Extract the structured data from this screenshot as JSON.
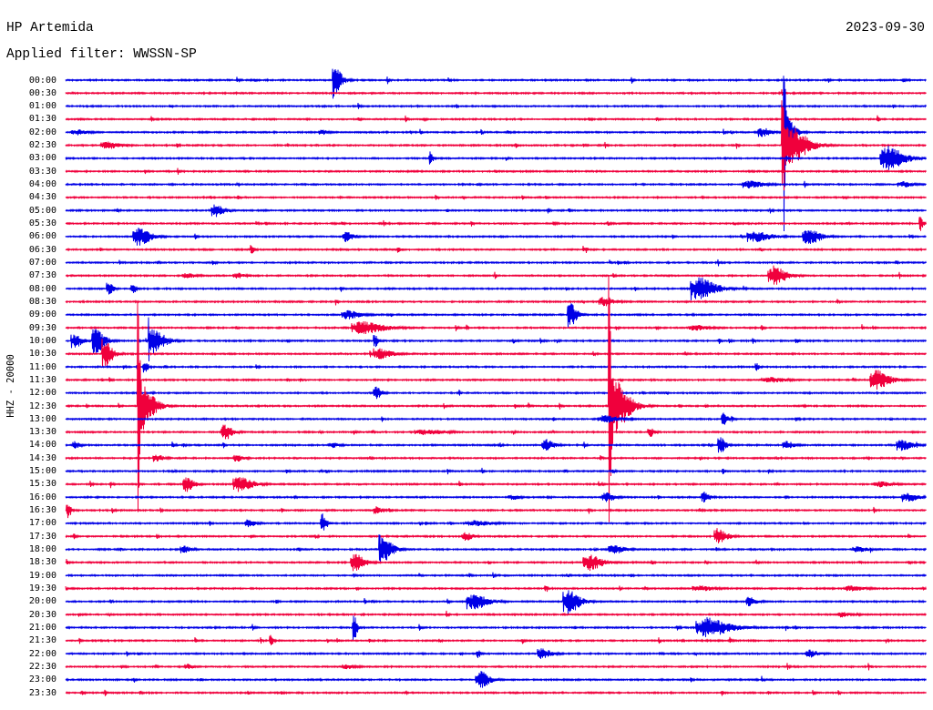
{
  "chart_data": {
    "type": "line",
    "title": "HP Artemida",
    "date": "2023-09-30",
    "subtitle": "Applied filter: WWSSN-SP",
    "ylabel": "HHZ - 20000",
    "y_tick_labels": [
      "00:00",
      "00:30",
      "01:00",
      "01:30",
      "02:00",
      "02:30",
      "03:00",
      "03:30",
      "04:00",
      "04:30",
      "05:00",
      "05:30",
      "06:00",
      "06:30",
      "07:00",
      "07:30",
      "08:00",
      "08:30",
      "09:00",
      "09:30",
      "10:00",
      "10:30",
      "11:00",
      "11:30",
      "12:00",
      "12:30",
      "13:00",
      "13:30",
      "14:00",
      "14:30",
      "15:00",
      "15:30",
      "16:00",
      "16:30",
      "17:00",
      "17:30",
      "18:00",
      "18:30",
      "19:00",
      "19:30",
      "20:00",
      "20:30",
      "21:00",
      "21:30",
      "22:00",
      "22:30",
      "23:00",
      "23:30"
    ],
    "xlim": [
      0,
      30
    ],
    "grid": false,
    "trace_colors": [
      "#0000e6",
      "#f0003c"
    ],
    "events": [
      {
        "row": "00:00",
        "minute": 9.31,
        "amplitude": 1.96,
        "duration": 0.57
      },
      {
        "row": "02:00",
        "minute": 0.19,
        "amplitude": 0.21,
        "duration": 0.95
      },
      {
        "row": "02:00",
        "minute": 8.83,
        "amplitude": 0.21,
        "duration": 0.48
      },
      {
        "row": "02:00",
        "minute": 24.15,
        "amplitude": 0.35,
        "duration": 0.79
      },
      {
        "row": "02:00",
        "minute": 25.04,
        "amplitude": 8.38,
        "duration": 0.64
      },
      {
        "row": "02:30",
        "minute": 1.21,
        "amplitude": 0.28,
        "duration": 1.27
      },
      {
        "row": "02:30",
        "minute": 24.95,
        "amplitude": 11.17,
        "duration": 1.43
      },
      {
        "row": "03:00",
        "minute": 12.65,
        "amplitude": 0.56,
        "duration": 0.1
      },
      {
        "row": "03:00",
        "minute": 28.38,
        "amplitude": 0.98,
        "duration": 1.43
      },
      {
        "row": "04:00",
        "minute": 23.61,
        "amplitude": 0.28,
        "duration": 1.27
      },
      {
        "row": "04:00",
        "minute": 29.01,
        "amplitude": 0.21,
        "duration": 0.95
      },
      {
        "row": "05:00",
        "minute": 5.08,
        "amplitude": 0.49,
        "duration": 0.79
      },
      {
        "row": "05:30",
        "minute": 29.75,
        "amplitude": 0.56,
        "duration": 0.25
      },
      {
        "row": "06:00",
        "minute": 2.32,
        "amplitude": 0.7,
        "duration": 1.11
      },
      {
        "row": "06:00",
        "minute": 9.63,
        "amplitude": 0.42,
        "duration": 0.64
      },
      {
        "row": "06:00",
        "minute": 23.77,
        "amplitude": 0.42,
        "duration": 1.43
      },
      {
        "row": "06:00",
        "minute": 25.68,
        "amplitude": 0.63,
        "duration": 1.11
      },
      {
        "row": "06:30",
        "minute": 6.42,
        "amplitude": 0.49,
        "duration": 0.13
      },
      {
        "row": "06:30",
        "minute": 11.54,
        "amplitude": 0.35,
        "duration": 0.19
      },
      {
        "row": "07:30",
        "minute": 4.07,
        "amplitude": 0.21,
        "duration": 0.79
      },
      {
        "row": "07:30",
        "minute": 5.82,
        "amplitude": 0.21,
        "duration": 0.79
      },
      {
        "row": "07:30",
        "minute": 24.5,
        "amplitude": 0.77,
        "duration": 1.02
      },
      {
        "row": "08:00",
        "minute": 1.43,
        "amplitude": 0.49,
        "duration": 0.38
      },
      {
        "row": "08:00",
        "minute": 2.26,
        "amplitude": 0.35,
        "duration": 0.38
      },
      {
        "row": "08:00",
        "minute": 21.8,
        "amplitude": 0.91,
        "duration": 1.43
      },
      {
        "row": "08:30",
        "minute": 18.56,
        "amplitude": 0.35,
        "duration": 0.95
      },
      {
        "row": "09:00",
        "minute": 9.6,
        "amplitude": 0.35,
        "duration": 1.11
      },
      {
        "row": "09:00",
        "minute": 17.48,
        "amplitude": 1.4,
        "duration": 0.57
      },
      {
        "row": "09:30",
        "minute": 9.95,
        "amplitude": 0.49,
        "duration": 1.91
      },
      {
        "row": "09:30",
        "minute": 21.71,
        "amplitude": 0.21,
        "duration": 1.27
      },
      {
        "row": "10:00",
        "minute": 0.19,
        "amplitude": 0.56,
        "duration": 0.64
      },
      {
        "row": "10:00",
        "minute": 0.89,
        "amplitude": 2.23,
        "duration": 0.79
      },
      {
        "row": "10:00",
        "minute": 2.89,
        "amplitude": 1.82,
        "duration": 0.95
      },
      {
        "row": "10:00",
        "minute": 10.74,
        "amplitude": 0.56,
        "duration": 0.19
      },
      {
        "row": "10:30",
        "minute": 1.27,
        "amplitude": 1.4,
        "duration": 0.64
      },
      {
        "row": "10:30",
        "minute": 10.74,
        "amplitude": 0.42,
        "duration": 1.11
      },
      {
        "row": "11:00",
        "minute": 2.7,
        "amplitude": 0.42,
        "duration": 0.32
      },
      {
        "row": "11:00",
        "minute": 24.03,
        "amplitude": 0.35,
        "duration": 0.19
      },
      {
        "row": "11:30",
        "minute": 24.25,
        "amplitude": 0.21,
        "duration": 1.43
      },
      {
        "row": "11:30",
        "minute": 28.06,
        "amplitude": 0.77,
        "duration": 1.11
      },
      {
        "row": "12:00",
        "minute": 10.74,
        "amplitude": 0.49,
        "duration": 0.48
      },
      {
        "row": "12:30",
        "minute": 2.51,
        "amplitude": 11.87,
        "duration": 0.95
      },
      {
        "row": "12:30",
        "minute": 18.94,
        "amplitude": 15.01,
        "duration": 1.11
      },
      {
        "row": "13:00",
        "minute": 18.53,
        "amplitude": 0.28,
        "duration": 1.43
      },
      {
        "row": "13:00",
        "minute": 22.88,
        "amplitude": 0.49,
        "duration": 0.38
      },
      {
        "row": "13:30",
        "minute": 5.43,
        "amplitude": 0.63,
        "duration": 0.64
      },
      {
        "row": "13:30",
        "minute": 12.17,
        "amplitude": 0.21,
        "duration": 1.75
      },
      {
        "row": "13:30",
        "minute": 20.28,
        "amplitude": 0.42,
        "duration": 0.38
      },
      {
        "row": "14:00",
        "minute": 0.25,
        "amplitude": 0.35,
        "duration": 0.38
      },
      {
        "row": "14:00",
        "minute": 9.15,
        "amplitude": 0.21,
        "duration": 0.64
      },
      {
        "row": "14:00",
        "minute": 16.59,
        "amplitude": 0.49,
        "duration": 0.7
      },
      {
        "row": "14:00",
        "minute": 22.75,
        "amplitude": 0.63,
        "duration": 0.44
      },
      {
        "row": "14:00",
        "minute": 24.98,
        "amplitude": 0.35,
        "duration": 0.7
      },
      {
        "row": "14:00",
        "minute": 28.98,
        "amplitude": 0.42,
        "duration": 0.95
      },
      {
        "row": "14:30",
        "minute": 3.05,
        "amplitude": 0.28,
        "duration": 0.64
      },
      {
        "row": "14:30",
        "minute": 5.82,
        "amplitude": 0.28,
        "duration": 0.64
      },
      {
        "row": "15:30",
        "minute": 4.07,
        "amplitude": 0.63,
        "duration": 0.64
      },
      {
        "row": "15:30",
        "minute": 5.82,
        "amplitude": 0.63,
        "duration": 1.11
      },
      {
        "row": "15:30",
        "minute": 28.16,
        "amplitude": 0.21,
        "duration": 1.11
      },
      {
        "row": "16:00",
        "minute": 15.44,
        "amplitude": 0.21,
        "duration": 0.64
      },
      {
        "row": "16:00",
        "minute": 18.69,
        "amplitude": 0.35,
        "duration": 0.79
      },
      {
        "row": "16:00",
        "minute": 22.18,
        "amplitude": 0.42,
        "duration": 0.48
      },
      {
        "row": "16:00",
        "minute": 29.17,
        "amplitude": 0.35,
        "duration": 0.95
      },
      {
        "row": "16:30",
        "minute": 0.03,
        "amplitude": 0.63,
        "duration": 0.25
      },
      {
        "row": "16:30",
        "minute": 10.74,
        "amplitude": 0.28,
        "duration": 0.48
      },
      {
        "row": "17:00",
        "minute": 6.23,
        "amplitude": 0.35,
        "duration": 0.64
      },
      {
        "row": "17:00",
        "minute": 8.87,
        "amplitude": 0.77,
        "duration": 0.38
      },
      {
        "row": "17:00",
        "minute": 13.92,
        "amplitude": 0.21,
        "duration": 1.59
      },
      {
        "row": "17:30",
        "minute": 13.82,
        "amplitude": 0.35,
        "duration": 0.64
      },
      {
        "row": "17:30",
        "minute": 22.6,
        "amplitude": 0.63,
        "duration": 0.79
      },
      {
        "row": "18:00",
        "minute": 4.0,
        "amplitude": 0.28,
        "duration": 0.64
      },
      {
        "row": "18:00",
        "minute": 10.93,
        "amplitude": 1.68,
        "duration": 0.79
      },
      {
        "row": "18:00",
        "minute": 18.94,
        "amplitude": 0.35,
        "duration": 0.95
      },
      {
        "row": "18:00",
        "minute": 27.43,
        "amplitude": 0.21,
        "duration": 0.95
      },
      {
        "row": "18:30",
        "minute": 9.92,
        "amplitude": 0.77,
        "duration": 0.79
      },
      {
        "row": "18:30",
        "minute": 18.05,
        "amplitude": 0.63,
        "duration": 1.11
      },
      {
        "row": "19:30",
        "minute": 21.86,
        "amplitude": 0.21,
        "duration": 1.27
      },
      {
        "row": "19:30",
        "minute": 27.11,
        "amplitude": 0.21,
        "duration": 1.27
      },
      {
        "row": "20:00",
        "minute": 13.98,
        "amplitude": 0.63,
        "duration": 1.27
      },
      {
        "row": "20:00",
        "minute": 17.35,
        "amplitude": 0.98,
        "duration": 0.95
      },
      {
        "row": "20:00",
        "minute": 23.71,
        "amplitude": 0.35,
        "duration": 0.64
      },
      {
        "row": "20:30",
        "minute": 26.89,
        "amplitude": 0.21,
        "duration": 0.79
      },
      {
        "row": "21:00",
        "minute": 10.01,
        "amplitude": 0.98,
        "duration": 0.25
      },
      {
        "row": "21:00",
        "minute": 21.99,
        "amplitude": 0.77,
        "duration": 1.91
      },
      {
        "row": "21:30",
        "minute": 7.09,
        "amplitude": 0.42,
        "duration": 0.19
      },
      {
        "row": "22:00",
        "minute": 14.33,
        "amplitude": 0.35,
        "duration": 0.19
      },
      {
        "row": "22:00",
        "minute": 16.46,
        "amplitude": 0.42,
        "duration": 0.79
      },
      {
        "row": "22:00",
        "minute": 25.81,
        "amplitude": 0.28,
        "duration": 0.79
      },
      {
        "row": "22:30",
        "minute": 4.16,
        "amplitude": 0.21,
        "duration": 0.48
      },
      {
        "row": "22:30",
        "minute": 9.63,
        "amplitude": 0.21,
        "duration": 0.79
      },
      {
        "row": "23:00",
        "minute": 14.3,
        "amplitude": 0.7,
        "duration": 0.79
      }
    ]
  }
}
